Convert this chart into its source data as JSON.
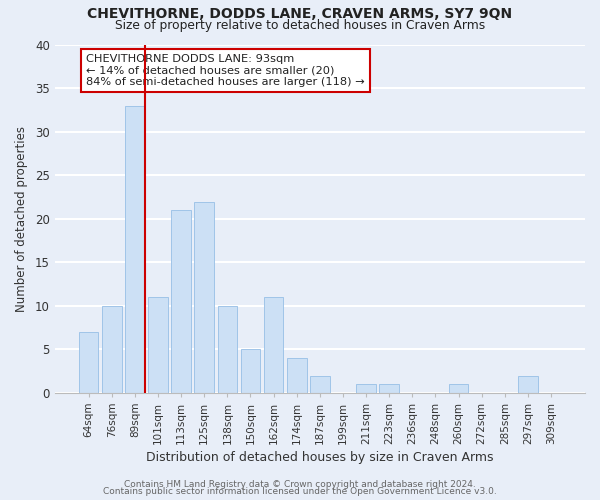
{
  "title": "CHEVITHORNE, DODDS LANE, CRAVEN ARMS, SY7 9QN",
  "subtitle": "Size of property relative to detached houses in Craven Arms",
  "xlabel": "Distribution of detached houses by size in Craven Arms",
  "ylabel": "Number of detached properties",
  "bar_labels": [
    "64sqm",
    "76sqm",
    "89sqm",
    "101sqm",
    "113sqm",
    "125sqm",
    "138sqm",
    "150sqm",
    "162sqm",
    "174sqm",
    "187sqm",
    "199sqm",
    "211sqm",
    "223sqm",
    "236sqm",
    "248sqm",
    "260sqm",
    "272sqm",
    "285sqm",
    "297sqm",
    "309sqm"
  ],
  "bar_values": [
    7,
    10,
    33,
    11,
    21,
    22,
    10,
    5,
    11,
    4,
    2,
    0,
    1,
    1,
    0,
    0,
    1,
    0,
    0,
    2,
    0
  ],
  "bar_color": "#cce0f5",
  "bar_edge_color": "#a0c4e8",
  "vline_x_index": 2,
  "vline_color": "#cc0000",
  "annotation_text": "CHEVITHORNE DODDS LANE: 93sqm\n← 14% of detached houses are smaller (20)\n84% of semi-detached houses are larger (118) →",
  "annotation_box_color": "#ffffff",
  "annotation_box_edge": "#cc0000",
  "ylim": [
    0,
    40
  ],
  "yticks": [
    0,
    5,
    10,
    15,
    20,
    25,
    30,
    35,
    40
  ],
  "background_color": "#e8eef8",
  "grid_color": "#ffffff",
  "footer_line1": "Contains HM Land Registry data © Crown copyright and database right 2024.",
  "footer_line2": "Contains public sector information licensed under the Open Government Licence v3.0."
}
